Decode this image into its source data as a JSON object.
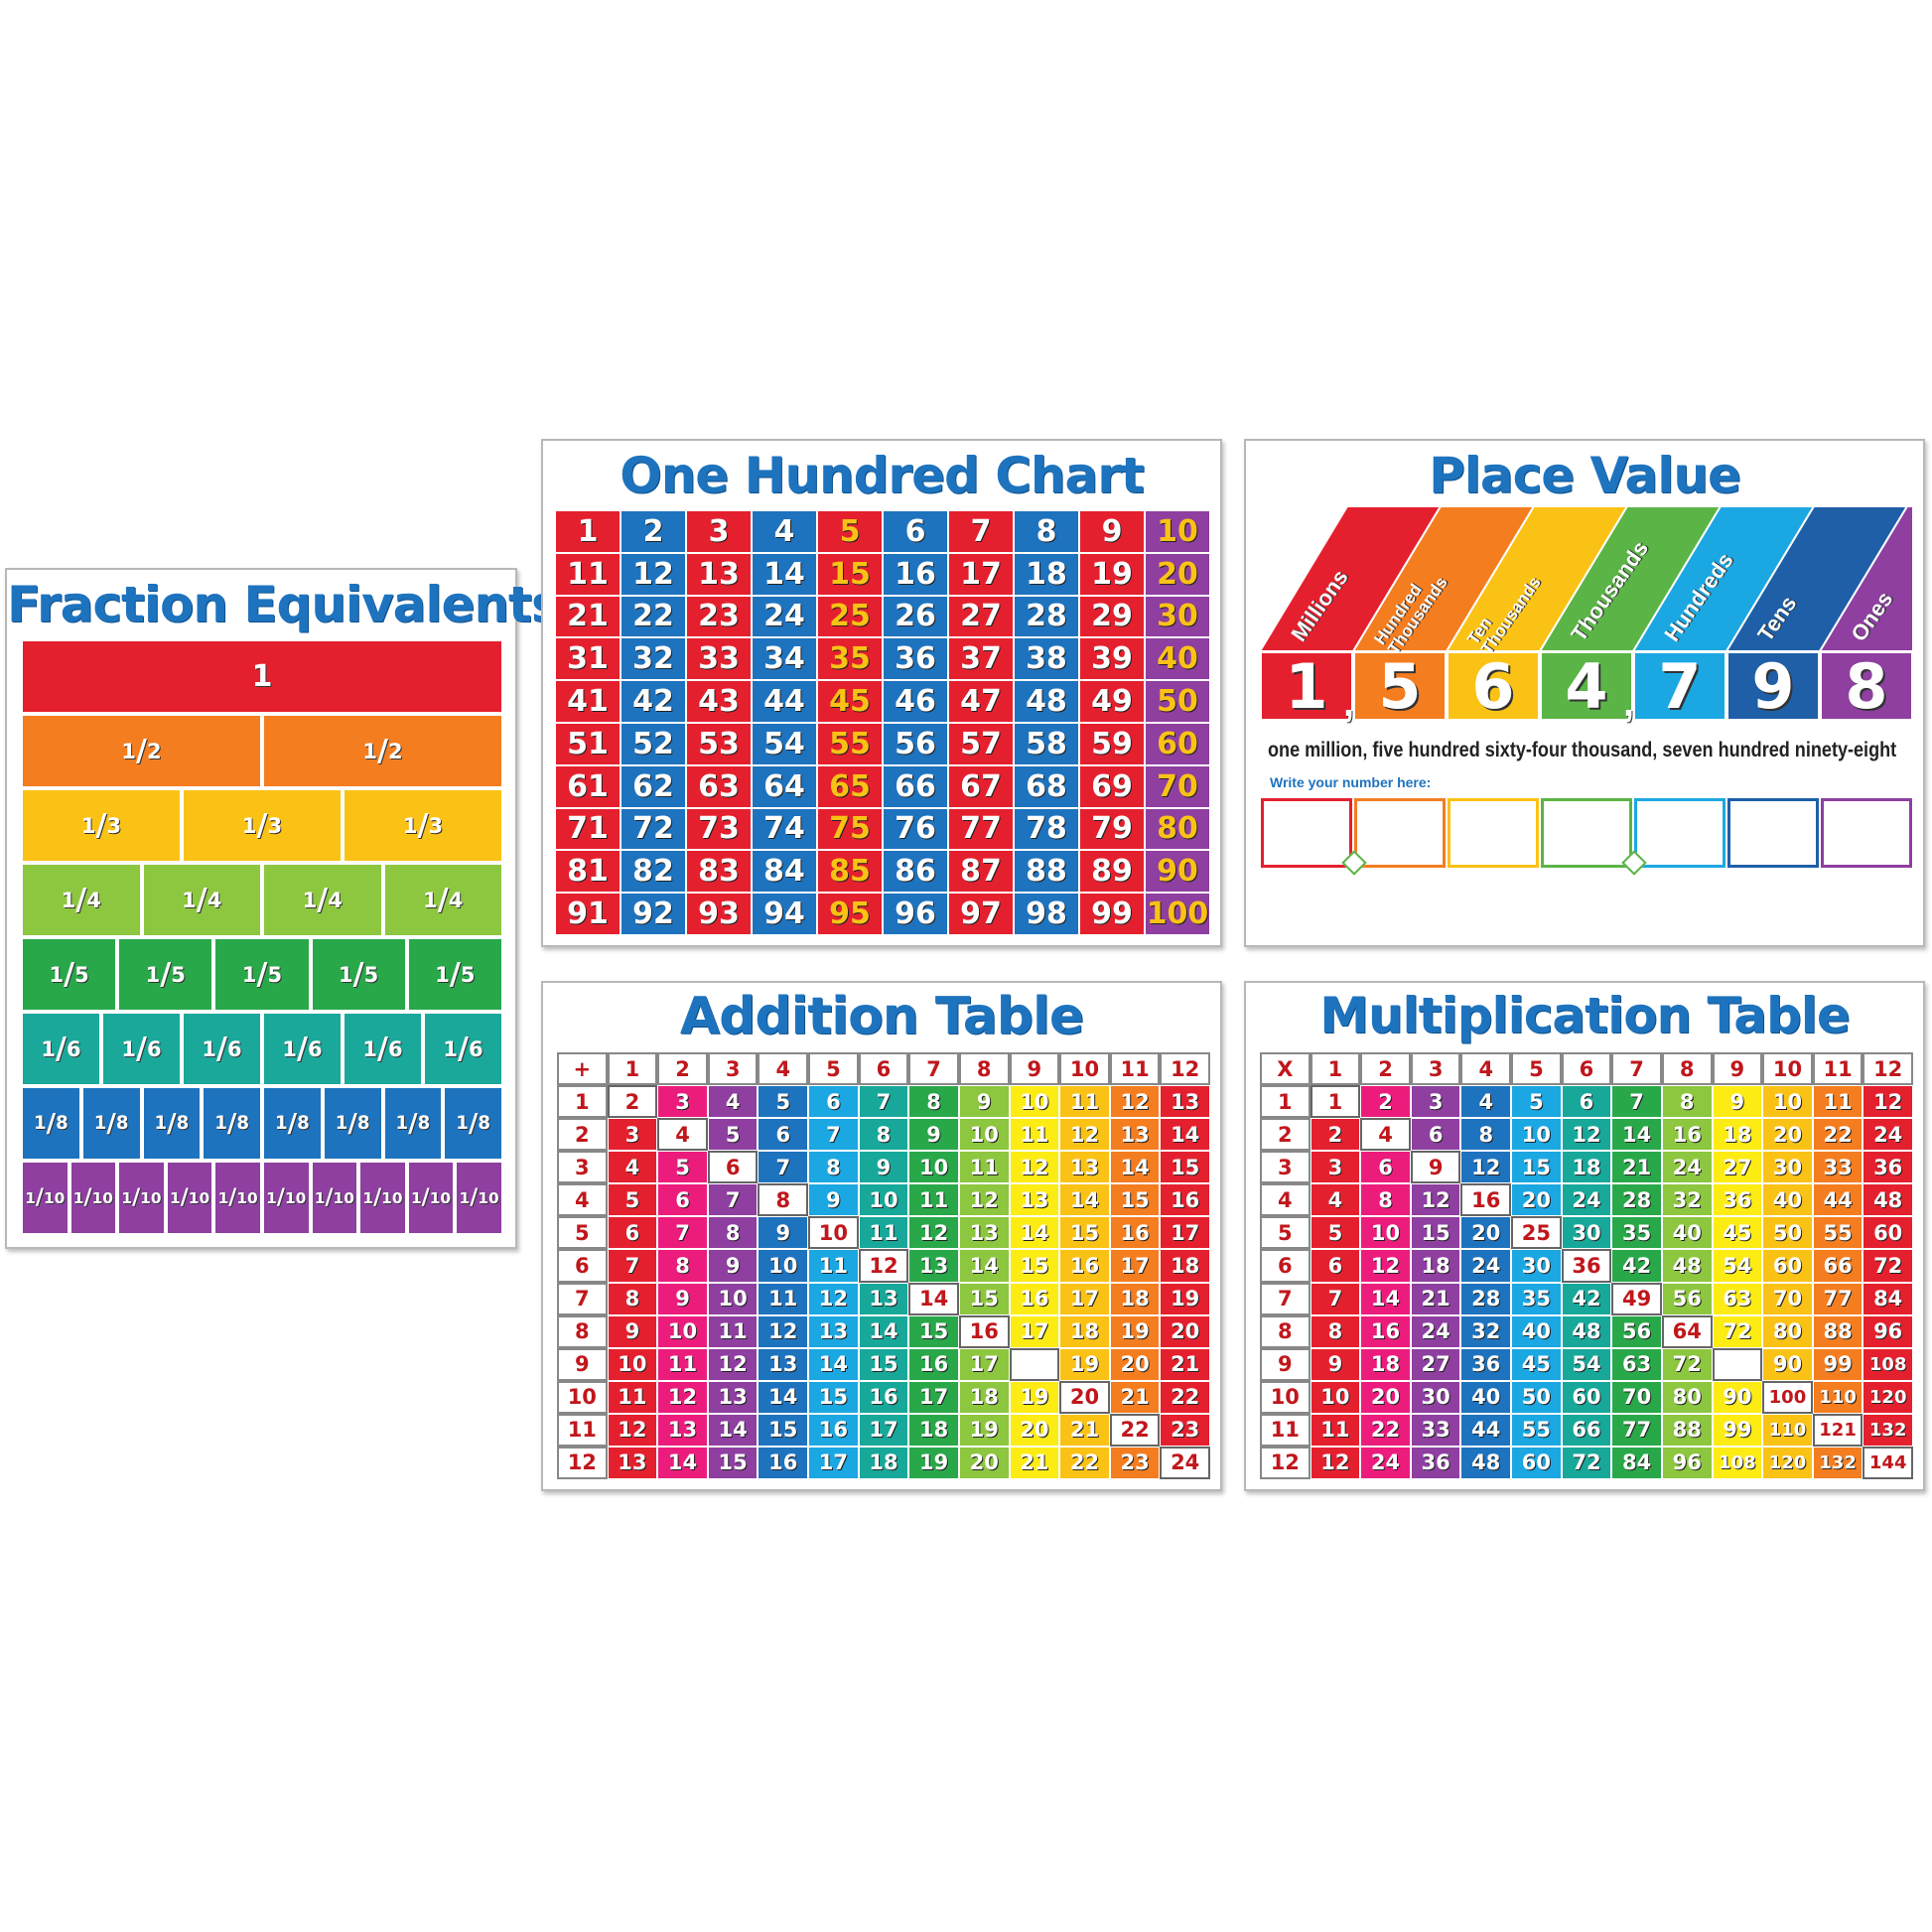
{
  "fraction": {
    "title": "Fraction Equivalents",
    "rows": [
      {
        "label": "1",
        "count": 1,
        "color": "#e5202e"
      },
      {
        "label": "1/2",
        "count": 2,
        "color": "#f47d20"
      },
      {
        "label": "1/3",
        "count": 3,
        "color": "#fbc216"
      },
      {
        "label": "1/4",
        "count": 4,
        "color": "#8dc63f"
      },
      {
        "label": "1/5",
        "count": 5,
        "color": "#29a84a"
      },
      {
        "label": "1/6",
        "count": 6,
        "color": "#1aa89a"
      },
      {
        "label": "1/8",
        "count": 8,
        "color": "#1e73be"
      },
      {
        "label": "1/10",
        "count": 10,
        "color": "#8e3fa0"
      }
    ]
  },
  "hundred": {
    "title": "One Hundred Chart",
    "colors": [
      "#e5202e",
      "#1e73be",
      "#e5202e",
      "#1e73be",
      "#e5202e",
      "#1e73be",
      "#e5202e",
      "#1e73be",
      "#e5202e",
      "#8e3fa0"
    ],
    "text_colors": {
      "col5": "#fbc216",
      "col10": "#fbc216"
    }
  },
  "place_value": {
    "title": "Place Value",
    "columns": [
      {
        "label": "Millions",
        "digit": "1",
        "color": "#e5202e"
      },
      {
        "label": "Hundred Thousands",
        "digit": "5",
        "color": "#f47d20"
      },
      {
        "label": "Ten Thousands",
        "digit": "6",
        "color": "#fbc216"
      },
      {
        "label": "Thousands",
        "digit": "4",
        "color": "#5bb446"
      },
      {
        "label": "Hundreds",
        "digit": "7",
        "color": "#1ba7e2"
      },
      {
        "label": "Tens",
        "digit": "9",
        "color": "#1e5fa8"
      },
      {
        "label": "Ones",
        "digit": "8",
        "color": "#8e3fa0"
      }
    ],
    "words": "one million, five hundred sixty-four thousand, seven hundred ninety-eight",
    "write_prompt": "Write your number here:",
    "comma": ","
  },
  "addition": {
    "title": "Addition Table",
    "operator": "+"
  },
  "multiplication": {
    "title": "Multiplication Table",
    "operator": "X"
  },
  "table_palette": [
    "#e5202e",
    "#ec1c7d",
    "#8e3fa0",
    "#1e73be",
    "#1ba7e2",
    "#17a89a",
    "#29a84a",
    "#8dc63f",
    "#fdeb14",
    "#fbc216",
    "#f47d20",
    "#e5202e"
  ]
}
